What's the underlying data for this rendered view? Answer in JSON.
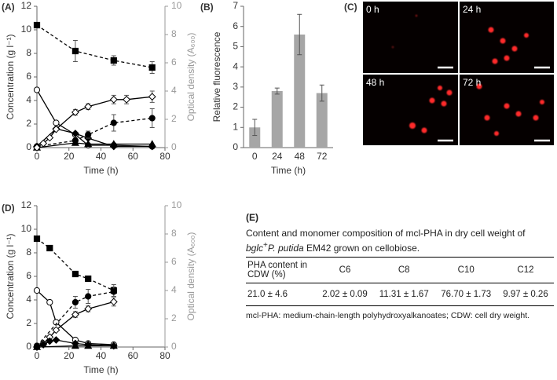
{
  "chart_data": [
    {
      "type": "line",
      "label": "(A)",
      "xlabel": "Time (h)",
      "ylabel": "Concentration (g l⁻¹)",
      "y2label": "Optical density (A₆₀₀)",
      "xlim": [
        0,
        80
      ],
      "xticks": [
        0,
        20,
        40,
        60,
        80
      ],
      "ylim": [
        0,
        12
      ],
      "yticks": [
        0,
        2,
        4,
        6,
        8,
        10,
        12
      ],
      "y2lim": [
        0,
        10
      ],
      "y2ticks": [
        0,
        2,
        4,
        6,
        8,
        10
      ],
      "y2color": "#999999",
      "series": [
        {
          "color": "#000000",
          "marker": "square",
          "filled": true,
          "dash": true,
          "x": [
            0,
            24,
            48,
            72
          ],
          "values": [
            10.4,
            8.2,
            7.4,
            6.8
          ],
          "errors": [
            0.2,
            0.9,
            0.4,
            0.5
          ]
        },
        {
          "color": "#000000",
          "marker": "circle",
          "filled": false,
          "dash": false,
          "x": [
            0,
            12,
            24,
            32,
            48,
            72
          ],
          "values": [
            4.9,
            2.1,
            1.1,
            0.2,
            0.2,
            0.1
          ]
        },
        {
          "color": "#000000",
          "marker": "diamond",
          "filled": true,
          "dash": false,
          "x": [
            0,
            12,
            24,
            32,
            48,
            72
          ],
          "values": [
            0.1,
            1.6,
            1.2,
            0.8,
            0.1,
            0.1
          ]
        },
        {
          "color": "#000000",
          "marker": "circle",
          "filled": true,
          "dash": true,
          "x": [
            0,
            24,
            32,
            48,
            72
          ],
          "values": [
            0.1,
            0.6,
            1.1,
            2.1,
            2.5
          ],
          "errors": [
            null,
            0.3,
            0.3,
            0.7,
            0.8
          ]
        },
        {
          "color": "#000000",
          "marker": "triangle",
          "filled": true,
          "dash": false,
          "x": [
            0,
            24,
            32,
            48,
            72
          ],
          "values": [
            0,
            0.4,
            0.3,
            0.3,
            0.3
          ]
        },
        {
          "color": "#000000",
          "marker": "diamond",
          "filled": false,
          "dash": false,
          "axis": "y2",
          "x": [
            0,
            4,
            8,
            12,
            24,
            32,
            48,
            56,
            72
          ],
          "values": [
            0,
            0.3,
            0.7,
            1.3,
            2.5,
            2.9,
            3.4,
            3.4,
            3.6
          ],
          "errors": [
            null,
            null,
            null,
            null,
            0.2,
            0.2,
            0.3,
            0.3,
            0.4
          ]
        }
      ]
    },
    {
      "type": "bar",
      "label": "(B)",
      "xlabel": "Time (h)",
      "ylabel": "Relative fluorescence",
      "categories": [
        "0",
        "24",
        "48",
        "72"
      ],
      "values": [
        1.0,
        2.8,
        5.6,
        2.7
      ],
      "errors": [
        0.4,
        0.15,
        1.0,
        0.4
      ],
      "color": "#a6a6a6",
      "ylim": [
        0,
        7
      ],
      "yticks": [
        0,
        1,
        2,
        3,
        4,
        5,
        6,
        7
      ]
    },
    {
      "type": "line",
      "label": "(D)",
      "xlabel": "Time (h)",
      "ylabel": "Concentration (g l⁻¹)",
      "y2label": "Optical density (A₆₀₀)",
      "xlim": [
        0,
        80
      ],
      "xticks": [
        0,
        20,
        40,
        60,
        80
      ],
      "ylim": [
        0,
        12
      ],
      "yticks": [
        0,
        2,
        4,
        6,
        8,
        10,
        12
      ],
      "y2lim": [
        0,
        10
      ],
      "y2ticks": [
        0,
        2,
        4,
        6,
        8,
        10
      ],
      "y2color": "#999999",
      "series": [
        {
          "color": "#000000",
          "marker": "square",
          "filled": true,
          "dash": true,
          "x": [
            0,
            8,
            24,
            32,
            48
          ],
          "values": [
            9.2,
            8.4,
            6.2,
            5.8,
            4.8
          ],
          "errors": [
            null,
            null,
            null,
            0.2,
            0.5
          ]
        },
        {
          "color": "#000000",
          "marker": "circle",
          "filled": false,
          "dash": false,
          "x": [
            0,
            8,
            12,
            24,
            32,
            48
          ],
          "values": [
            4.8,
            3.8,
            2.1,
            0.6,
            0.3,
            0.2
          ]
        },
        {
          "color": "#000000",
          "marker": "circle",
          "filled": true,
          "dash": true,
          "x": [
            0,
            24,
            32,
            48
          ],
          "values": [
            0.1,
            3.8,
            4.3,
            4.7
          ],
          "errors": [
            null,
            0.5,
            0.6,
            0.4
          ]
        },
        {
          "color": "#000000",
          "marker": "diamond",
          "filled": false,
          "dash": false,
          "axis": "y2",
          "x": [
            0,
            4,
            8,
            12,
            24,
            32,
            48
          ],
          "values": [
            0,
            0.25,
            0.7,
            1.2,
            2.3,
            2.7,
            3.2
          ],
          "errors": [
            null,
            null,
            null,
            null,
            0.2,
            0.2,
            0.3
          ]
        },
        {
          "color": "#000000",
          "marker": "diamond",
          "filled": true,
          "dash": false,
          "x": [
            0,
            4,
            8,
            12,
            24,
            32,
            48
          ],
          "values": [
            0,
            0.2,
            0.5,
            0.6,
            0.3,
            0.2,
            0.1
          ]
        },
        {
          "color": "#000000",
          "marker": "triangle",
          "filled": true,
          "dash": false,
          "x": [
            0,
            24,
            32,
            48
          ],
          "values": [
            0,
            0.1,
            0.1,
            0.1
          ]
        }
      ]
    }
  ],
  "images": {
    "label": "(C)",
    "tiles": [
      "0 h",
      "24 h",
      "48 h",
      "72 h"
    ]
  },
  "table": {
    "label": "(E)",
    "title": [
      "Content and monomer composition of mcl-PHA in dry cell weight of ",
      "bglc",
      "+",
      "P. putida",
      " EM42 grown on cellobiose."
    ],
    "columns": [
      "PHA content in CDW (%)",
      "C6",
      "C8",
      "C10",
      "C12"
    ],
    "rows": [
      [
        "21.0 ± 4.6",
        "2.02 ± 0.09",
        "11.31 ± 1.67",
        "76.70 ± 1.73",
        "9.97 ± 0.26"
      ]
    ],
    "note": "mcl-PHA: medium-chain-length polyhydroxyalkanoates; CDW: cell dry weight."
  }
}
